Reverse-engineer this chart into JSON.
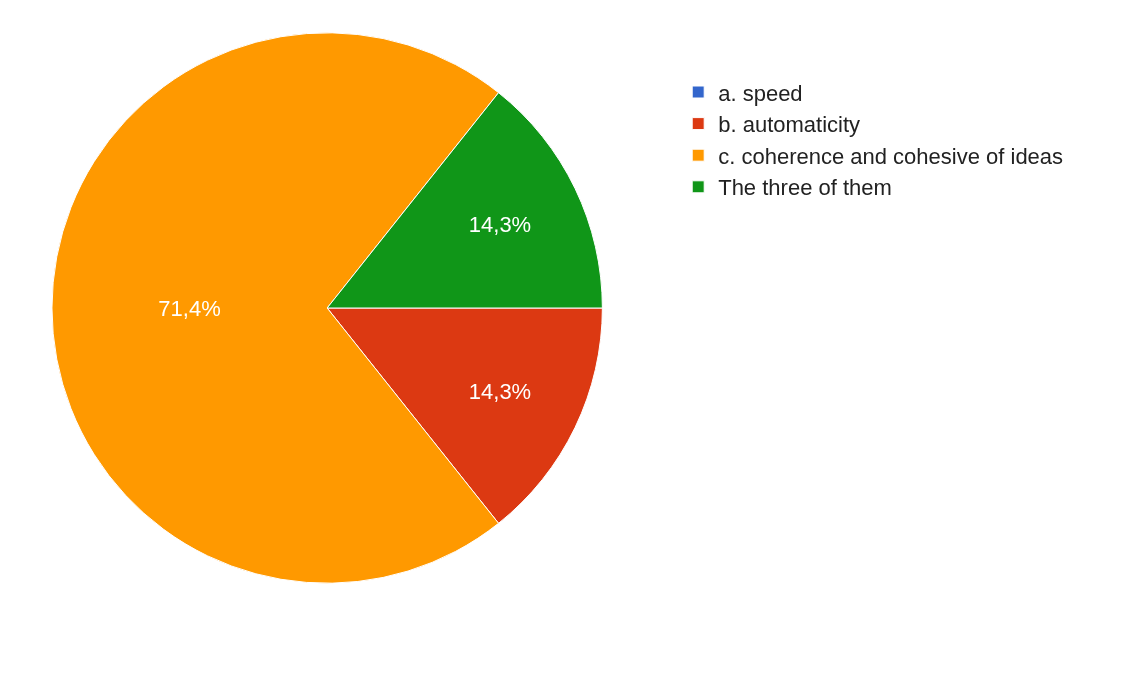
{
  "chart_data": {
    "type": "pie",
    "categories": [
      "a. speed",
      "b. automaticity",
      "c. coherence and cohesive of ideas",
      "The three of them"
    ],
    "values": [
      0,
      14.3,
      71.4,
      14.3
    ],
    "colors": [
      "#3366cc",
      "#dc3912",
      "#ff9900",
      "#109618"
    ],
    "value_labels": [
      null,
      "14,3%",
      "71,4%",
      "14,3%"
    ],
    "legend": "top right"
  }
}
